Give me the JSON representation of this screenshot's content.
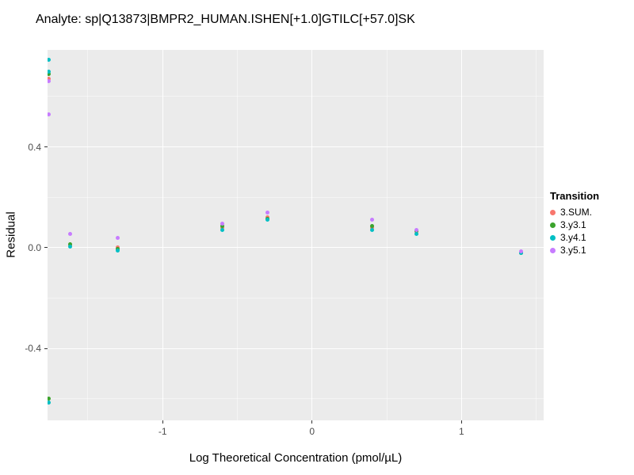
{
  "chart_data": {
    "type": "scatter",
    "title": "Analyte: sp|Q13873|BMPR2_HUMAN.ISHEN[+1.0]GTILC[+57.0]SK",
    "xlabel": "Log Theoretical Concentration (pmol/µL)",
    "ylabel": "Residual",
    "xlim": [
      -1.77,
      1.55
    ],
    "ylim": [
      -0.685,
      0.785
    ],
    "grid": true,
    "x_ticks": [
      -1,
      0,
      1
    ],
    "x_tick_labels": [
      "-1",
      "0",
      "1"
    ],
    "y_ticks": [
      0.4,
      0.0,
      -0.4
    ],
    "y_tick_labels": [
      "0.4",
      "0.0",
      "-0.4"
    ],
    "x_minor_ticks": [
      -1.5,
      -0.5,
      0.5,
      1.5
    ],
    "y_minor_ticks": [
      0.6,
      0.2,
      -0.2,
      -0.6
    ],
    "legend_title": "Transition",
    "legend_position": "right",
    "panel_bg": "#EBEBEB",
    "grid_major_color": "rgba(255,255,255,0.95)",
    "grid_minor_color": "rgba(255,255,255,0.45)",
    "tick_label_color": "#4D4D4D",
    "series": [
      {
        "name": "3.SUM.",
        "color": "#F8766D",
        "points": [
          [
            -1.76,
            0.67
          ],
          [
            -1.62,
            0.01
          ],
          [
            -1.3,
            0.0
          ],
          [
            -0.6,
            0.08
          ],
          [
            -0.3,
            0.12
          ],
          [
            0.4,
            0.08
          ],
          [
            0.7,
            0.065
          ],
          [
            1.4,
            -0.02
          ]
        ]
      },
      {
        "name": "3.y3.1",
        "color": "#3BA32C",
        "points": [
          [
            -1.76,
            0.69
          ],
          [
            -1.76,
            -0.6
          ],
          [
            -1.62,
            0.015
          ],
          [
            -1.3,
            -0.005
          ],
          [
            -0.6,
            0.085
          ],
          [
            -0.3,
            0.115
          ],
          [
            0.4,
            0.085
          ],
          [
            0.7,
            0.068
          ],
          [
            1.4,
            -0.02
          ]
        ]
      },
      {
        "name": "3.y4.1",
        "color": "#00BFC4",
        "points": [
          [
            -1.76,
            0.745
          ],
          [
            -1.76,
            0.7
          ],
          [
            -1.76,
            -0.615
          ],
          [
            -1.62,
            0.005
          ],
          [
            -1.3,
            -0.01
          ],
          [
            -0.6,
            0.07
          ],
          [
            -0.3,
            0.11
          ],
          [
            0.4,
            0.07
          ],
          [
            0.7,
            0.055
          ],
          [
            1.4,
            -0.02
          ]
        ]
      },
      {
        "name": "3.y5.1",
        "color": "#C77CFF",
        "points": [
          [
            -1.76,
            0.66
          ],
          [
            -1.76,
            0.53
          ],
          [
            -1.62,
            0.055
          ],
          [
            -1.3,
            0.04
          ],
          [
            -0.6,
            0.095
          ],
          [
            -0.3,
            0.14
          ],
          [
            0.4,
            0.11
          ],
          [
            0.7,
            0.07
          ],
          [
            1.4,
            -0.015
          ]
        ]
      }
    ]
  }
}
